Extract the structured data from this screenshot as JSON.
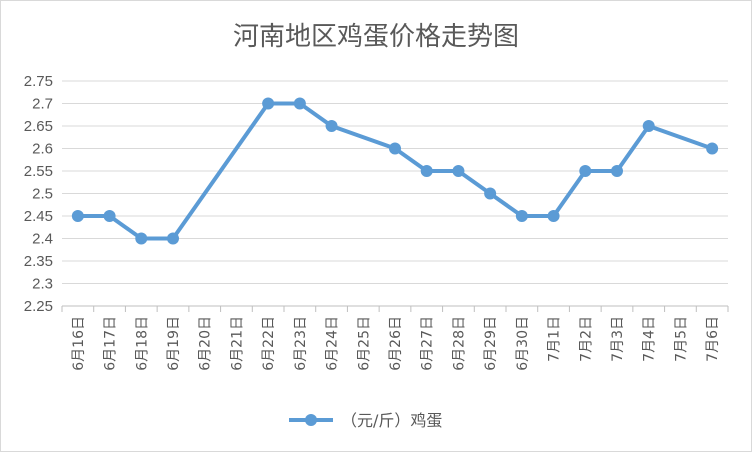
{
  "chart_data": {
    "type": "line",
    "title": "河南地区鸡蛋价格走势图",
    "xlabel": "",
    "ylabel": "",
    "ylim": [
      2.25,
      2.75
    ],
    "ystep": 0.05,
    "yticks": [
      "2.25",
      "2.3",
      "2.35",
      "2.4",
      "2.45",
      "2.5",
      "2.55",
      "2.6",
      "2.65",
      "2.7",
      "2.75"
    ],
    "grid": true,
    "legend_position": "bottom",
    "categories": [
      "6月16日",
      "6月17日",
      "6月18日",
      "6月19日",
      "6月20日",
      "6月21日",
      "6月22日",
      "6月23日",
      "6月24日",
      "6月25日",
      "6月26日",
      "6月27日",
      "6月28日",
      "6月29日",
      "6月30日",
      "7月1日",
      "7月2日",
      "7月3日",
      "7月4日",
      "7月5日",
      "7月6日"
    ],
    "series": [
      {
        "name": "（元/斤）鸡蛋",
        "color": "#5b9bd5",
        "values": [
          2.45,
          2.45,
          2.4,
          2.4,
          null,
          null,
          2.7,
          2.7,
          2.65,
          null,
          2.6,
          2.55,
          2.55,
          2.5,
          2.45,
          2.45,
          2.55,
          2.55,
          2.65,
          null,
          2.6
        ]
      }
    ]
  }
}
